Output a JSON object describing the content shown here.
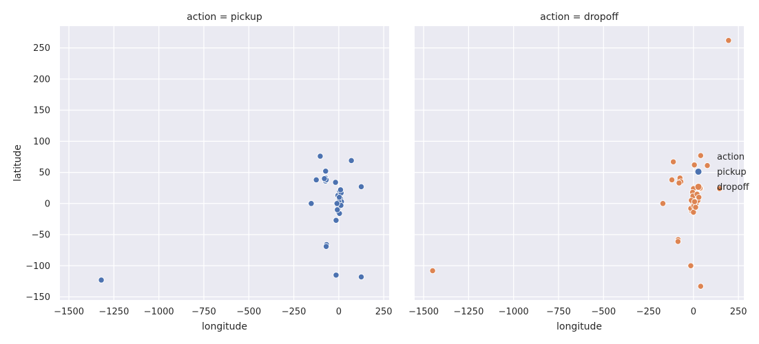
{
  "chart_data": {
    "type": "scatter",
    "xlabel": "longitude",
    "ylabel": "latitude",
    "xlim": [
      -1550,
      280
    ],
    "ylim": [
      -155,
      285
    ],
    "x_ticks": [
      -1500,
      -1250,
      -1000,
      -750,
      -500,
      -250,
      0,
      250
    ],
    "x_tick_labels": [
      "−1500",
      "−1250",
      "−1000",
      "−750",
      "−500",
      "−250",
      "0",
      "250"
    ],
    "y_ticks": [
      -150,
      -100,
      -50,
      0,
      50,
      100,
      150,
      200,
      250
    ],
    "y_tick_labels": [
      "−150",
      "−100",
      "−50",
      "0",
      "50",
      "100",
      "150",
      "200",
      "250"
    ],
    "grid": true,
    "legend": {
      "title": "action",
      "placement": "right",
      "entries": [
        {
          "label": "pickup",
          "color": "#4c72b0"
        },
        {
          "label": "dropoff",
          "color": "#dd8452"
        }
      ]
    },
    "facets": [
      {
        "title": "action = pickup",
        "color": "#4c72b0",
        "points": [
          [
            -1320,
            -123
          ],
          [
            -103,
            76
          ],
          [
            -125,
            38
          ],
          [
            -153,
            0
          ],
          [
            -73,
            52
          ],
          [
            -74,
            41
          ],
          [
            -73,
            36
          ],
          [
            -70,
            38
          ],
          [
            -80,
            40
          ],
          [
            -18,
            34
          ],
          [
            -5,
            13
          ],
          [
            5,
            20
          ],
          [
            13,
            17
          ],
          [
            10,
            22
          ],
          [
            70,
            69
          ],
          [
            125,
            27
          ],
          [
            -68,
            -66
          ],
          [
            -70,
            -69
          ],
          [
            -15,
            -115
          ],
          [
            125,
            -118
          ],
          [
            -15,
            -27
          ],
          [
            -2,
            -14
          ],
          [
            4,
            -16
          ],
          [
            0,
            -2
          ],
          [
            2,
            2
          ],
          [
            5,
            5
          ],
          [
            8,
            0
          ],
          [
            -5,
            -5
          ],
          [
            -3,
            -8
          ],
          [
            10,
            8
          ],
          [
            15,
            3
          ],
          [
            -8,
            -10
          ],
          [
            0,
            3
          ],
          [
            12,
            -3
          ],
          [
            -10,
            0
          ],
          [
            3,
            10
          ]
        ]
      },
      {
        "title": "action = dropoff",
        "color": "#dd8452",
        "points": [
          [
            -1450,
            -108
          ],
          [
            195,
            262
          ],
          [
            -170,
            0
          ],
          [
            -112,
            67
          ],
          [
            -120,
            38
          ],
          [
            -78,
            38
          ],
          [
            -75,
            41
          ],
          [
            -70,
            35
          ],
          [
            -80,
            33
          ],
          [
            -85,
            -58
          ],
          [
            -86,
            -61
          ],
          [
            -15,
            -100
          ],
          [
            40,
            -133
          ],
          [
            40,
            77
          ],
          [
            5,
            62
          ],
          [
            77,
            61
          ],
          [
            145,
            24
          ],
          [
            40,
            24
          ],
          [
            37,
            25
          ],
          [
            0,
            24
          ],
          [
            -5,
            18
          ],
          [
            5,
            10
          ],
          [
            10,
            5
          ],
          [
            15,
            0
          ],
          [
            -5,
            -5
          ],
          [
            -10,
            -12
          ],
          [
            -15,
            -8
          ],
          [
            0,
            -14
          ],
          [
            3,
            0
          ],
          [
            8,
            8
          ],
          [
            18,
            12
          ],
          [
            25,
            5
          ],
          [
            -3,
            12
          ],
          [
            -8,
            3
          ],
          [
            2,
            -4
          ],
          [
            12,
            -6
          ],
          [
            20,
            15
          ],
          [
            -12,
            5
          ],
          [
            6,
            3
          ],
          [
            30,
            10
          ]
        ]
      }
    ]
  }
}
